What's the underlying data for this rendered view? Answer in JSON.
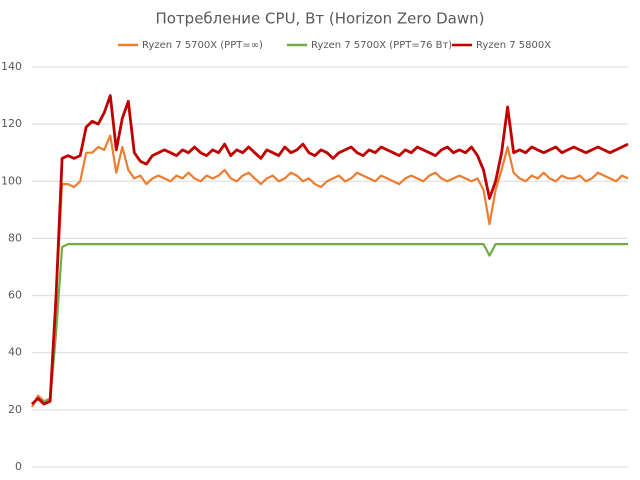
{
  "chart_data": {
    "type": "line",
    "title": "Потребление CPU, Вт (Horizon Zero Dawn)",
    "ylim": [
      0,
      140
    ],
    "yticks": [
      0,
      20,
      40,
      60,
      80,
      100,
      120,
      140
    ],
    "grid": true,
    "legend": "top",
    "series": [
      {
        "name": "Ryzen 7 5700X (PPT=∞)",
        "color": "#ed7d31",
        "values": [
          21,
          25,
          23,
          24,
          60,
          99,
          99,
          98,
          100,
          110,
          110,
          112,
          111,
          116,
          103,
          112,
          104,
          101,
          102,
          99,
          101,
          102,
          101,
          100,
          102,
          101,
          103,
          101,
          100,
          102,
          101,
          102,
          104,
          101,
          100,
          102,
          103,
          101,
          99,
          101,
          102,
          100,
          101,
          103,
          102,
          100,
          101,
          99,
          98,
          100,
          101,
          102,
          100,
          101,
          103,
          102,
          101,
          100,
          102,
          101,
          100,
          99,
          101,
          102,
          101,
          100,
          102,
          103,
          101,
          100,
          101,
          102,
          101,
          100,
          101,
          97,
          85,
          97,
          104,
          112,
          103,
          101,
          100,
          102,
          101,
          103,
          101,
          100,
          102,
          101,
          101,
          102,
          100,
          101,
          103,
          102,
          101,
          100,
          102,
          101
        ]
      },
      {
        "name": "Ryzen 7 5700X (PPT=76 Вт)",
        "color": "#70ad47",
        "values": [
          22,
          24,
          23,
          23,
          47,
          77,
          78,
          78,
          78,
          78,
          78,
          78,
          78,
          78,
          78,
          78,
          78,
          78,
          78,
          78,
          78,
          78,
          78,
          78,
          78,
          78,
          78,
          78,
          78,
          78,
          78,
          78,
          78,
          78,
          78,
          78,
          78,
          78,
          78,
          78,
          78,
          78,
          78,
          78,
          78,
          78,
          78,
          78,
          78,
          78,
          78,
          78,
          78,
          78,
          78,
          78,
          78,
          78,
          78,
          78,
          78,
          78,
          78,
          78,
          78,
          78,
          78,
          78,
          78,
          78,
          78,
          78,
          78,
          78,
          78,
          78,
          74,
          78,
          78,
          78,
          78,
          78,
          78,
          78,
          78,
          78,
          78,
          78,
          78,
          78,
          78,
          78,
          78,
          78,
          78,
          78,
          78,
          78,
          78,
          78
        ]
      },
      {
        "name": "Ryzen 7 5800X",
        "color": "#c00000",
        "values": [
          22,
          24,
          22,
          23,
          60,
          108,
          109,
          108,
          109,
          119,
          121,
          120,
          124,
          130,
          111,
          122,
          128,
          110,
          107,
          106,
          109,
          110,
          111,
          110,
          109,
          111,
          110,
          112,
          110,
          109,
          111,
          110,
          113,
          109,
          111,
          110,
          112,
          110,
          108,
          111,
          110,
          109,
          112,
          110,
          111,
          113,
          110,
          109,
          111,
          110,
          108,
          110,
          111,
          112,
          110,
          109,
          111,
          110,
          112,
          111,
          110,
          109,
          111,
          110,
          112,
          111,
          110,
          109,
          111,
          112,
          110,
          111,
          110,
          112,
          109,
          104,
          94,
          100,
          110,
          126,
          110,
          111,
          110,
          112,
          111,
          110,
          111,
          112,
          110,
          111,
          112,
          111,
          110,
          111,
          112,
          111,
          110,
          111,
          112,
          113
        ]
      }
    ]
  }
}
